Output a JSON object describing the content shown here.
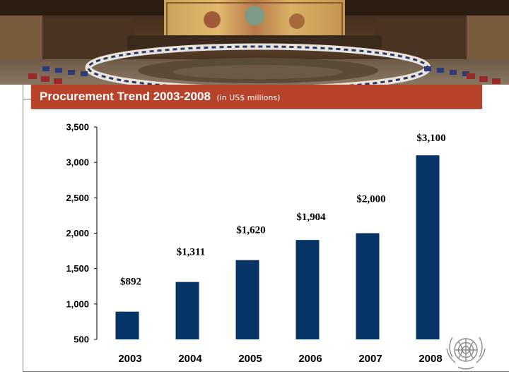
{
  "header": {
    "title": "Procurement Trend 2003-2008",
    "subtitle": "(in US$ millions)"
  },
  "chart_data": {
    "type": "bar",
    "title": "Procurement Trend 2003-2008",
    "subtitle": "(in US$ millions)",
    "xlabel": "",
    "ylabel": "",
    "categories": [
      "2003",
      "2004",
      "2005",
      "2006",
      "2007",
      "2008"
    ],
    "values": [
      892,
      1311,
      1620,
      1904,
      2000,
      3100
    ],
    "data_labels": [
      "$892",
      "$1,311",
      "$1,620",
      "$1,904",
      "$2,000",
      "$3,100"
    ],
    "ylim": [
      500,
      3500
    ],
    "y_ticks": [
      500,
      1000,
      1500,
      2000,
      2500,
      3000,
      3500
    ],
    "y_tick_labels": [
      "500",
      "1,000",
      "1,500",
      "2,000",
      "2,500",
      "3,000",
      "3,500"
    ],
    "grid": false,
    "bar_color": "#063466"
  },
  "colors": {
    "title_bar": "#b8432b",
    "bar": "#063466"
  },
  "icons": {
    "hero": "security-council-chamber-photo",
    "logo": "un-emblem-icon"
  }
}
